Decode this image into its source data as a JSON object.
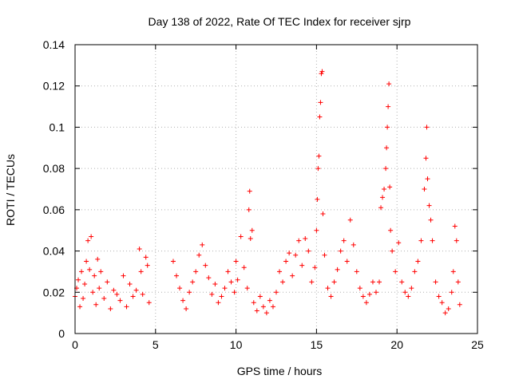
{
  "chart_data": {
    "type": "scatter",
    "title": "Day 138 of 2022, Rate Of TEC Index for receiver sjrp",
    "xlabel": "GPS time / hours",
    "ylabel": "ROTI / TECUs",
    "xlim": [
      0,
      25
    ],
    "ylim": [
      0,
      0.14
    ],
    "x_ticks": [
      0,
      5,
      10,
      15,
      20,
      25
    ],
    "x_tick_labels": [
      "0",
      "5",
      "10",
      "15",
      "20",
      "25"
    ],
    "y_ticks": [
      0,
      0.02,
      0.04,
      0.06,
      0.08,
      0.1,
      0.12,
      0.14
    ],
    "y_tick_labels": [
      "0",
      "0.02",
      "0.04",
      "0.06",
      "0.08",
      "0.1",
      "0.12",
      "0.14"
    ],
    "grid": true,
    "marker": "+",
    "marker_color": "#ff0000",
    "series": [
      {
        "name": "ROTI",
        "points": [
          [
            0.0,
            0.018
          ],
          [
            0.1,
            0.022
          ],
          [
            0.2,
            0.026
          ],
          [
            0.3,
            0.013
          ],
          [
            0.4,
            0.03
          ],
          [
            0.5,
            0.017
          ],
          [
            0.6,
            0.024
          ],
          [
            0.7,
            0.035
          ],
          [
            0.8,
            0.045
          ],
          [
            0.9,
            0.031
          ],
          [
            1.0,
            0.047
          ],
          [
            1.1,
            0.02
          ],
          [
            1.2,
            0.028
          ],
          [
            1.3,
            0.014
          ],
          [
            1.4,
            0.036
          ],
          [
            1.5,
            0.022
          ],
          [
            1.6,
            0.03
          ],
          [
            1.8,
            0.017
          ],
          [
            2.0,
            0.025
          ],
          [
            2.2,
            0.012
          ],
          [
            2.4,
            0.021
          ],
          [
            2.6,
            0.019
          ],
          [
            2.8,
            0.016
          ],
          [
            3.0,
            0.028
          ],
          [
            3.2,
            0.013
          ],
          [
            3.4,
            0.024
          ],
          [
            3.6,
            0.018
          ],
          [
            3.8,
            0.021
          ],
          [
            4.0,
            0.041
          ],
          [
            4.1,
            0.03
          ],
          [
            4.2,
            0.019
          ],
          [
            4.4,
            0.037
          ],
          [
            4.5,
            0.033
          ],
          [
            4.6,
            0.015
          ],
          [
            6.1,
            0.035
          ],
          [
            6.3,
            0.028
          ],
          [
            6.5,
            0.022
          ],
          [
            6.7,
            0.016
          ],
          [
            6.9,
            0.012
          ],
          [
            7.1,
            0.02
          ],
          [
            7.3,
            0.025
          ],
          [
            7.5,
            0.03
          ],
          [
            7.7,
            0.038
          ],
          [
            7.9,
            0.043
          ],
          [
            8.1,
            0.033
          ],
          [
            8.3,
            0.027
          ],
          [
            8.5,
            0.019
          ],
          [
            8.7,
            0.024
          ],
          [
            8.9,
            0.015
          ],
          [
            9.1,
            0.018
          ],
          [
            9.3,
            0.022
          ],
          [
            9.5,
            0.03
          ],
          [
            9.7,
            0.025
          ],
          [
            9.9,
            0.02
          ],
          [
            10.0,
            0.035
          ],
          [
            10.1,
            0.026
          ],
          [
            10.3,
            0.047
          ],
          [
            10.5,
            0.032
          ],
          [
            10.7,
            0.022
          ],
          [
            10.8,
            0.06
          ],
          [
            10.85,
            0.069
          ],
          [
            10.9,
            0.046
          ],
          [
            11.0,
            0.05
          ],
          [
            11.1,
            0.015
          ],
          [
            11.3,
            0.011
          ],
          [
            11.5,
            0.018
          ],
          [
            11.7,
            0.013
          ],
          [
            11.9,
            0.01
          ],
          [
            12.1,
            0.016
          ],
          [
            12.3,
            0.013
          ],
          [
            12.5,
            0.02
          ],
          [
            12.7,
            0.03
          ],
          [
            12.9,
            0.025
          ],
          [
            13.1,
            0.035
          ],
          [
            13.3,
            0.039
          ],
          [
            13.5,
            0.028
          ],
          [
            13.7,
            0.038
          ],
          [
            13.9,
            0.045
          ],
          [
            14.1,
            0.033
          ],
          [
            14.3,
            0.046
          ],
          [
            14.5,
            0.04
          ],
          [
            14.7,
            0.025
          ],
          [
            14.9,
            0.032
          ],
          [
            15.0,
            0.05
          ],
          [
            15.05,
            0.065
          ],
          [
            15.1,
            0.08
          ],
          [
            15.15,
            0.086
          ],
          [
            15.2,
            0.105
          ],
          [
            15.25,
            0.112
          ],
          [
            15.3,
            0.126
          ],
          [
            15.35,
            0.127
          ],
          [
            15.4,
            0.058
          ],
          [
            15.5,
            0.038
          ],
          [
            15.7,
            0.022
          ],
          [
            15.9,
            0.018
          ],
          [
            16.1,
            0.025
          ],
          [
            16.3,
            0.031
          ],
          [
            16.5,
            0.04
          ],
          [
            16.7,
            0.045
          ],
          [
            16.9,
            0.035
          ],
          [
            17.1,
            0.055
          ],
          [
            17.3,
            0.043
          ],
          [
            17.5,
            0.03
          ],
          [
            17.7,
            0.022
          ],
          [
            17.9,
            0.018
          ],
          [
            18.1,
            0.015
          ],
          [
            18.3,
            0.019
          ],
          [
            18.5,
            0.025
          ],
          [
            18.7,
            0.02
          ],
          [
            18.9,
            0.025
          ],
          [
            19.0,
            0.061
          ],
          [
            19.1,
            0.066
          ],
          [
            19.2,
            0.07
          ],
          [
            19.3,
            0.08
          ],
          [
            19.35,
            0.09
          ],
          [
            19.4,
            0.1
          ],
          [
            19.45,
            0.11
          ],
          [
            19.5,
            0.121
          ],
          [
            19.55,
            0.071
          ],
          [
            19.6,
            0.05
          ],
          [
            19.7,
            0.04
          ],
          [
            19.9,
            0.03
          ],
          [
            20.1,
            0.044
          ],
          [
            20.3,
            0.025
          ],
          [
            20.5,
            0.02
          ],
          [
            20.7,
            0.018
          ],
          [
            20.9,
            0.022
          ],
          [
            21.1,
            0.03
          ],
          [
            21.3,
            0.035
          ],
          [
            21.5,
            0.045
          ],
          [
            21.7,
            0.07
          ],
          [
            21.8,
            0.085
          ],
          [
            21.85,
            0.1
          ],
          [
            21.9,
            0.075
          ],
          [
            22.0,
            0.062
          ],
          [
            22.1,
            0.055
          ],
          [
            22.2,
            0.045
          ],
          [
            22.4,
            0.025
          ],
          [
            22.6,
            0.018
          ],
          [
            22.8,
            0.015
          ],
          [
            23.0,
            0.01
          ],
          [
            23.2,
            0.012
          ],
          [
            23.4,
            0.02
          ],
          [
            23.5,
            0.03
          ],
          [
            23.6,
            0.052
          ],
          [
            23.7,
            0.045
          ],
          [
            23.8,
            0.025
          ],
          [
            23.9,
            0.014
          ]
        ]
      }
    ]
  }
}
